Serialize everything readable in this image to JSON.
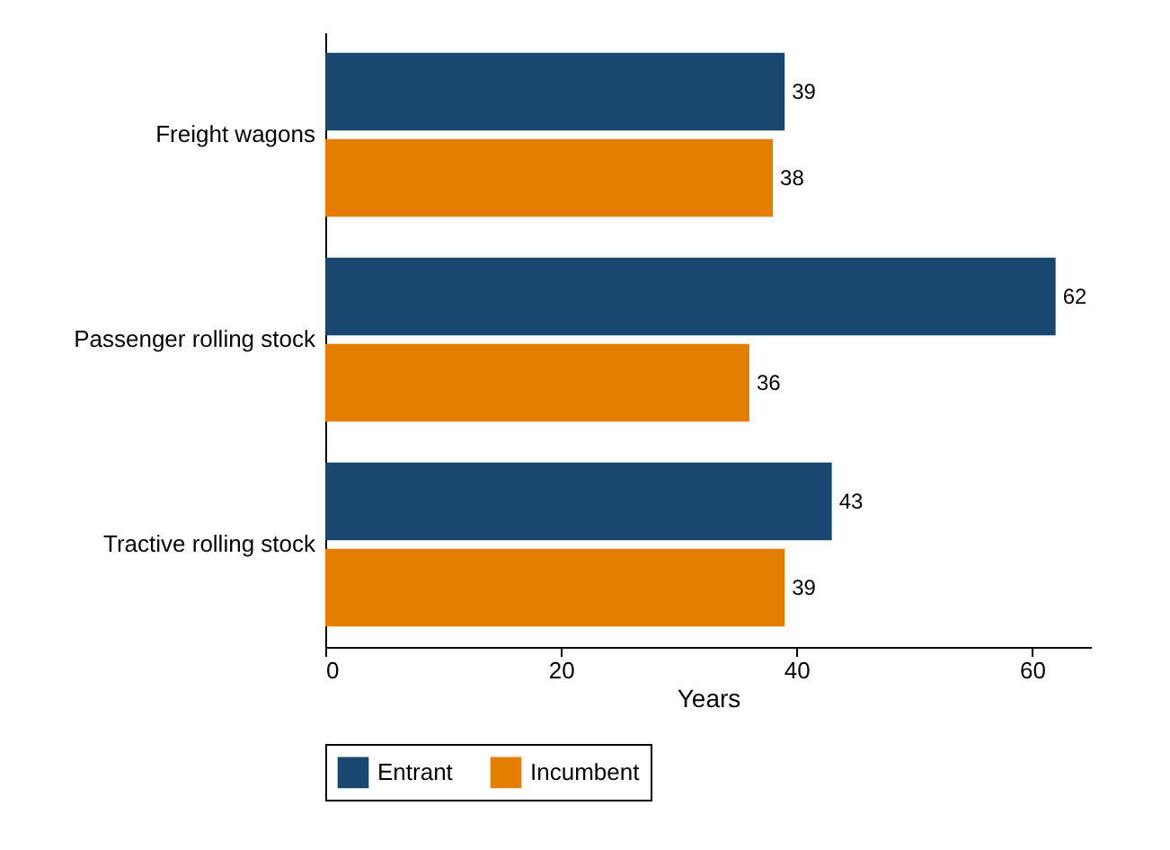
{
  "chart_data": {
    "type": "bar",
    "orientation": "horizontal",
    "xlabel": "Years",
    "categories": [
      "Freight wagons",
      "Passenger rolling stock",
      "Tractive rolling stock"
    ],
    "series": [
      {
        "name": "Entrant",
        "color": "#1a476f",
        "values": [
          39,
          62,
          43
        ]
      },
      {
        "name": "Incumbent",
        "color": "#e37e00",
        "values": [
          38,
          36,
          39
        ]
      }
    ],
    "xlim": [
      0,
      65
    ],
    "xticks": [
      0,
      20,
      40,
      60
    ],
    "data_labels": true,
    "grid": false,
    "legend": "bottom"
  }
}
